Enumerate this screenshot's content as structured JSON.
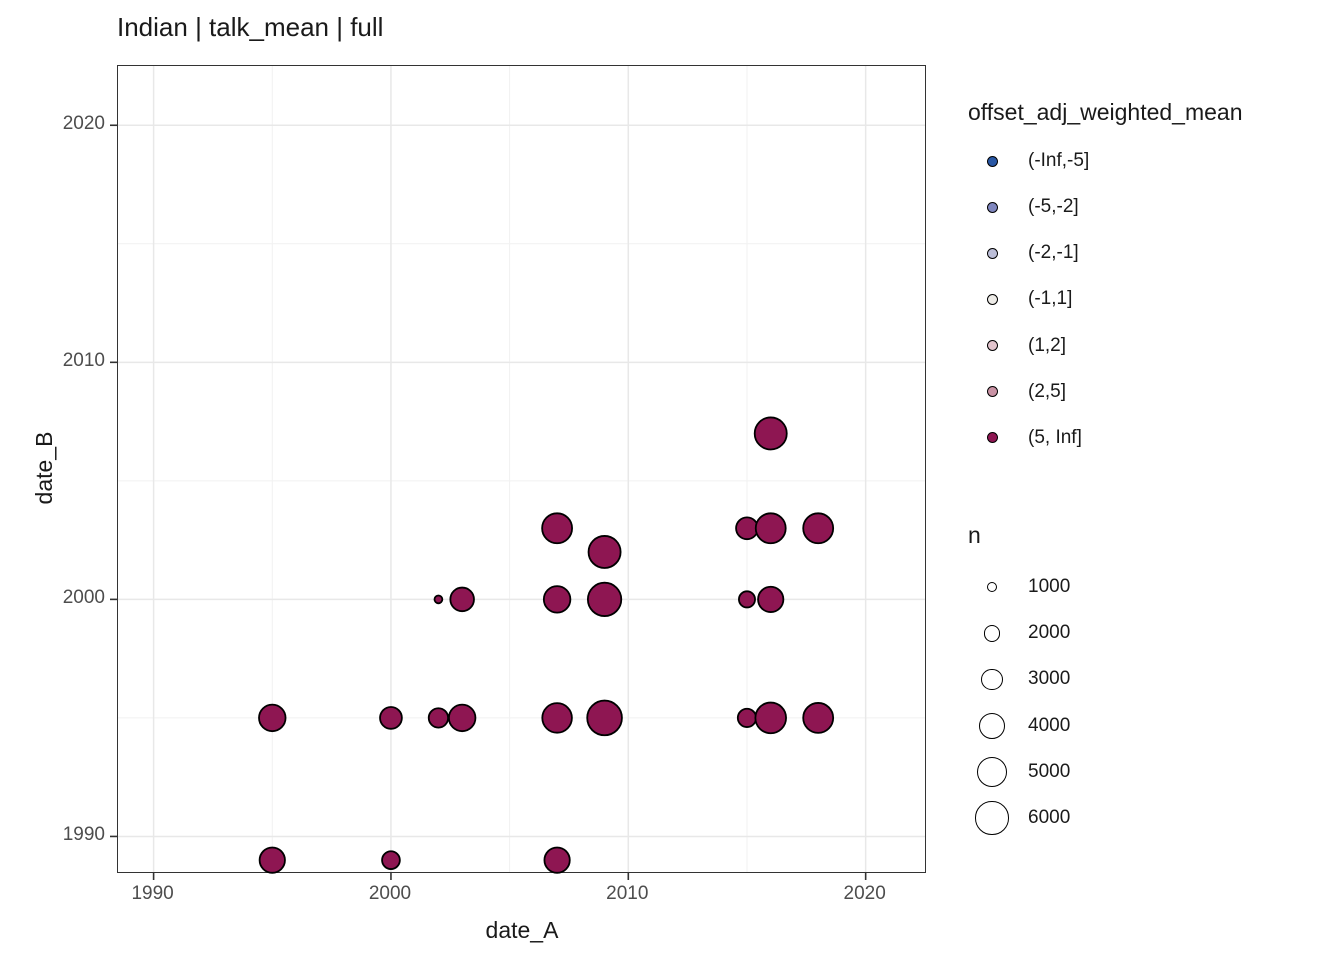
{
  "title": "Indian | talk_mean | full",
  "colors": {
    "point_fill": "#8E1652",
    "point_stroke": "#000000",
    "panel_border": "#333333",
    "grid_major": "#E8E8E8",
    "grid_minor": "#F1F1F1",
    "tick_label": "#4d4d4d",
    "text": "#1a1a1a"
  },
  "chart_data": {
    "type": "scatter",
    "title": "Indian | talk_mean | full",
    "xlabel": "date_A",
    "ylabel": "date_B",
    "xlim": [
      1988.5,
      2022.5
    ],
    "ylim": [
      1988.5,
      2022.5
    ],
    "x_ticks": [
      1990,
      2000,
      2010,
      2020
    ],
    "y_ticks": [
      1990,
      2000,
      2010,
      2020
    ],
    "x_minor_ticks": [
      1995,
      2005,
      2015
    ],
    "y_minor_ticks": [
      1995,
      2005,
      2015
    ],
    "grid": true,
    "legend_position": "right",
    "color_legend": {
      "title": "offset_adj_weighted_mean",
      "entries": [
        {
          "label": "(-Inf,-5]",
          "color": "#2857A4"
        },
        {
          "label": "(-5,-2]",
          "color": "#7F86BE"
        },
        {
          "label": "(-2,-1]",
          "color": "#BCBED8"
        },
        {
          "label": "(-1,1]",
          "color": "#EDEBE7"
        },
        {
          "label": "(1,2]",
          "color": "#E2C4CD"
        },
        {
          "label": "(2,5]",
          "color": "#C992A4"
        },
        {
          "label": "(5, Inf]",
          "color": "#8E1652"
        }
      ]
    },
    "size_legend": {
      "title": "n",
      "entries": [
        {
          "label": "1000",
          "n": 1000
        },
        {
          "label": "2000",
          "n": 2000
        },
        {
          "label": "3000",
          "n": 3000
        },
        {
          "label": "4000",
          "n": 4000
        },
        {
          "label": "5000",
          "n": 5000
        },
        {
          "label": "6000",
          "n": 6000
        }
      ]
    },
    "points": [
      {
        "x": 1995,
        "y": 1989,
        "n": 3800,
        "bin": "(5, Inf]"
      },
      {
        "x": 2000,
        "y": 1989,
        "n": 2200,
        "bin": "(5, Inf]"
      },
      {
        "x": 2007,
        "y": 1989,
        "n": 3800,
        "bin": "(5, Inf]"
      },
      {
        "x": 1995,
        "y": 1995,
        "n": 4100,
        "bin": "(5, Inf]"
      },
      {
        "x": 2000,
        "y": 1995,
        "n": 3000,
        "bin": "(5, Inf]"
      },
      {
        "x": 2002,
        "y": 1995,
        "n": 2500,
        "bin": "(5, Inf]"
      },
      {
        "x": 2003,
        "y": 1995,
        "n": 4100,
        "bin": "(5, Inf]"
      },
      {
        "x": 2007,
        "y": 1995,
        "n": 4900,
        "bin": "(5, Inf]"
      },
      {
        "x": 2009,
        "y": 1995,
        "n": 6400,
        "bin": "(5, Inf]"
      },
      {
        "x": 2015,
        "y": 1995,
        "n": 2300,
        "bin": "(5, Inf]"
      },
      {
        "x": 2016,
        "y": 1995,
        "n": 5200,
        "bin": "(5, Inf]"
      },
      {
        "x": 2018,
        "y": 1995,
        "n": 5000,
        "bin": "(5, Inf]"
      },
      {
        "x": 2002,
        "y": 2000,
        "n": 750,
        "bin": "(5, Inf]"
      },
      {
        "x": 2003,
        "y": 2000,
        "n": 3400,
        "bin": "(5, Inf]"
      },
      {
        "x": 2007,
        "y": 2000,
        "n": 4100,
        "bin": "(5, Inf]"
      },
      {
        "x": 2009,
        "y": 2000,
        "n": 6000,
        "bin": "(5, Inf]"
      },
      {
        "x": 2015,
        "y": 2000,
        "n": 1900,
        "bin": "(5, Inf]"
      },
      {
        "x": 2016,
        "y": 2000,
        "n": 3800,
        "bin": "(5, Inf]"
      },
      {
        "x": 2009,
        "y": 2002,
        "n": 5600,
        "bin": "(5, Inf]"
      },
      {
        "x": 2007,
        "y": 2003,
        "n": 5000,
        "bin": "(5, Inf]"
      },
      {
        "x": 2015,
        "y": 2003,
        "n": 3000,
        "bin": "(5, Inf]"
      },
      {
        "x": 2016,
        "y": 2003,
        "n": 5000,
        "bin": "(5, Inf]"
      },
      {
        "x": 2018,
        "y": 2003,
        "n": 5000,
        "bin": "(5, Inf]"
      },
      {
        "x": 2016,
        "y": 2007,
        "n": 5600,
        "bin": "(5, Inf]"
      }
    ],
    "size_scale": {
      "slope": 0.2552,
      "intercept": -3.07,
      "min_radius": 1.2
    }
  }
}
